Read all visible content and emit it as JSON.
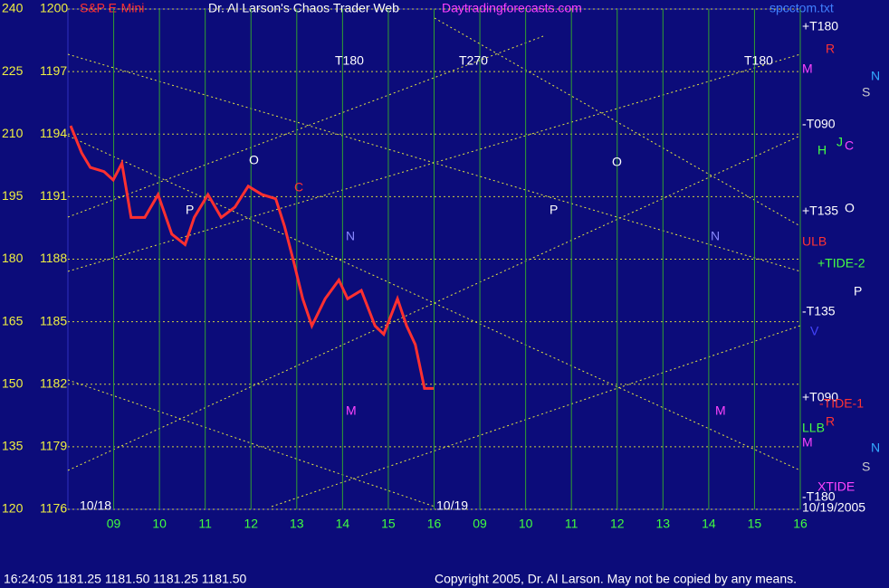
{
  "chart_data": {
    "type": "line",
    "title": "S&P E-Mini",
    "subtitle": "Dr. Al Larson's Chaos Trader Web",
    "website": "Daytradingforecasts.com",
    "file": "spcctom.txt",
    "xlim": [
      8,
      24
    ],
    "xticks": [
      {
        "value": 9,
        "label": "09"
      },
      10,
      11,
      12,
      13,
      14,
      15,
      16,
      {
        "value": 17,
        "label": "09"
      },
      {
        "value": 18,
        "label": "10"
      },
      {
        "value": 19,
        "label": "11"
      },
      {
        "value": 20,
        "label": "12"
      },
      {
        "value": 21,
        "label": "13"
      },
      {
        "value": 22,
        "label": "14"
      },
      {
        "value": 23,
        "label": "15"
      },
      {
        "value": 24,
        "label": "16"
      }
    ],
    "date_labels": [
      "10/18",
      "10/19"
    ],
    "ylim": [
      1176,
      1200
    ],
    "yticks": [
      1176,
      1179,
      1182,
      1185,
      1188,
      1191,
      1194,
      1197,
      1200
    ],
    "y2lim": [
      120,
      240
    ],
    "y2ticks": [
      120,
      135,
      150,
      165,
      180,
      195,
      210,
      225,
      240
    ],
    "grid": true,
    "series": [
      {
        "name": "S&P E-Mini",
        "color": "#ff3030",
        "x": [
          8.06,
          8.3,
          8.49,
          8.79,
          8.99,
          9.18,
          9.38,
          9.68,
          9.97,
          10.27,
          10.56,
          10.76,
          11.06,
          11.35,
          11.65,
          11.94,
          12.24,
          12.54,
          12.73,
          12.93,
          13.13,
          13.33,
          13.62,
          13.92,
          14.11,
          14.41,
          14.71,
          14.9,
          15.2,
          15.4,
          15.59,
          15.79,
          15.99
        ],
        "values": [
          1194.4,
          1193.1,
          1192.4,
          1192.2,
          1191.8,
          1192.6,
          1190.0,
          1190.0,
          1191.1,
          1189.2,
          1188.7,
          1190.0,
          1191.1,
          1190.0,
          1190.5,
          1191.5,
          1191.1,
          1190.9,
          1189.6,
          1187.9,
          1186.1,
          1184.8,
          1186.1,
          1187.0,
          1186.1,
          1186.5,
          1184.8,
          1184.4,
          1186.1,
          1184.8,
          1183.9,
          1181.8,
          1181.8
        ]
      }
    ],
    "annotations": [
      "+T180",
      "R",
      "M",
      "N",
      "S",
      "-T090",
      "H",
      "J",
      "C",
      "+T135",
      "O",
      "ULB",
      "+TIDE-2",
      "P",
      "-T135",
      "V",
      "+T090",
      "-TIDE-1",
      "LLB",
      "R",
      "M",
      "N",
      "S",
      "XTIDE",
      "-T180",
      "10/19/2005",
      "T180",
      "T270",
      "T180",
      "O",
      "P",
      "N",
      "M",
      "O",
      "P",
      "N",
      "M",
      "C"
    ],
    "status": "16:24:05  1181.25 1181.50 1181.25 1181.50",
    "copyright": "Copyright 2005, Dr. Al Larson. May not be copied by any means."
  }
}
